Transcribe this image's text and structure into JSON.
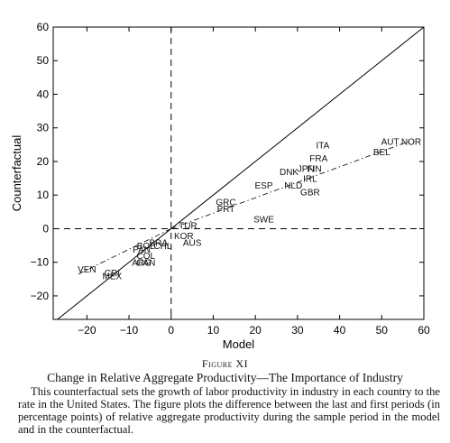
{
  "figure": {
    "label": "Figure XI",
    "title": "Change in Relative Aggregate Productivity—The Importance of Industry",
    "note": "This counterfactual sets the growth of labor productivity in industry in each country to the rate in the United States. The figure plots the difference between the last and first periods (in percentage points) of relative aggregate productivity during the sample period in the model and in the counterfactual."
  },
  "chart_data": {
    "type": "scatter",
    "xlabel": "Model",
    "ylabel": "Counterfactual",
    "xlim": [
      -28,
      60
    ],
    "ylim": [
      -27,
      60
    ],
    "xticks": [
      -20,
      -10,
      0,
      10,
      20,
      30,
      40,
      50,
      60
    ],
    "yticks": [
      -20,
      -10,
      0,
      10,
      20,
      30,
      40,
      50,
      60
    ],
    "grid": false,
    "reference_lines": [
      "45-degree line",
      "x = 0 (dashed)",
      "y = 0 (dashed)",
      "fitted trend (dash-dot)"
    ],
    "points": [
      {
        "label": "ITA",
        "x": 36,
        "y": 25
      },
      {
        "label": "FRA",
        "x": 35,
        "y": 21
      },
      {
        "label": "FIN",
        "x": 34,
        "y": 18
      },
      {
        "label": "JPN",
        "x": 32,
        "y": 18
      },
      {
        "label": "DNK",
        "x": 28,
        "y": 17
      },
      {
        "label": "IRL",
        "x": 33,
        "y": 15
      },
      {
        "label": "NLD",
        "x": 29,
        "y": 13
      },
      {
        "label": "ESP",
        "x": 22,
        "y": 13
      },
      {
        "label": "GBR",
        "x": 33,
        "y": 11
      },
      {
        "label": "AUT",
        "x": 52,
        "y": 26
      },
      {
        "label": "NOR",
        "x": 57,
        "y": 26
      },
      {
        "label": "BEL",
        "x": 50,
        "y": 23
      },
      {
        "label": "GRC",
        "x": 13,
        "y": 8
      },
      {
        "label": "PRT",
        "x": 13,
        "y": 6
      },
      {
        "label": "SWE",
        "x": 22,
        "y": 3
      },
      {
        "label": "TUR",
        "x": 4,
        "y": 1
      },
      {
        "label": "KOR",
        "x": 3,
        "y": -2
      },
      {
        "label": "AUS",
        "x": 5,
        "y": -4
      },
      {
        "label": "BRA",
        "x": -3,
        "y": -4
      },
      {
        "label": "BOL",
        "x": -6,
        "y": -5
      },
      {
        "label": "CHL",
        "x": -2,
        "y": -5
      },
      {
        "label": "PAN",
        "x": -7,
        "y": -6
      },
      {
        "label": "COL",
        "x": -6,
        "y": -8
      },
      {
        "label": "CAN",
        "x": -6,
        "y": -10
      },
      {
        "label": "ARG",
        "x": -7,
        "y": -10
      },
      {
        "label": "VEN",
        "x": -20,
        "y": -12
      },
      {
        "label": "CRI",
        "x": -14,
        "y": -13
      },
      {
        "label": "MEX",
        "x": -14,
        "y": -14
      }
    ]
  }
}
